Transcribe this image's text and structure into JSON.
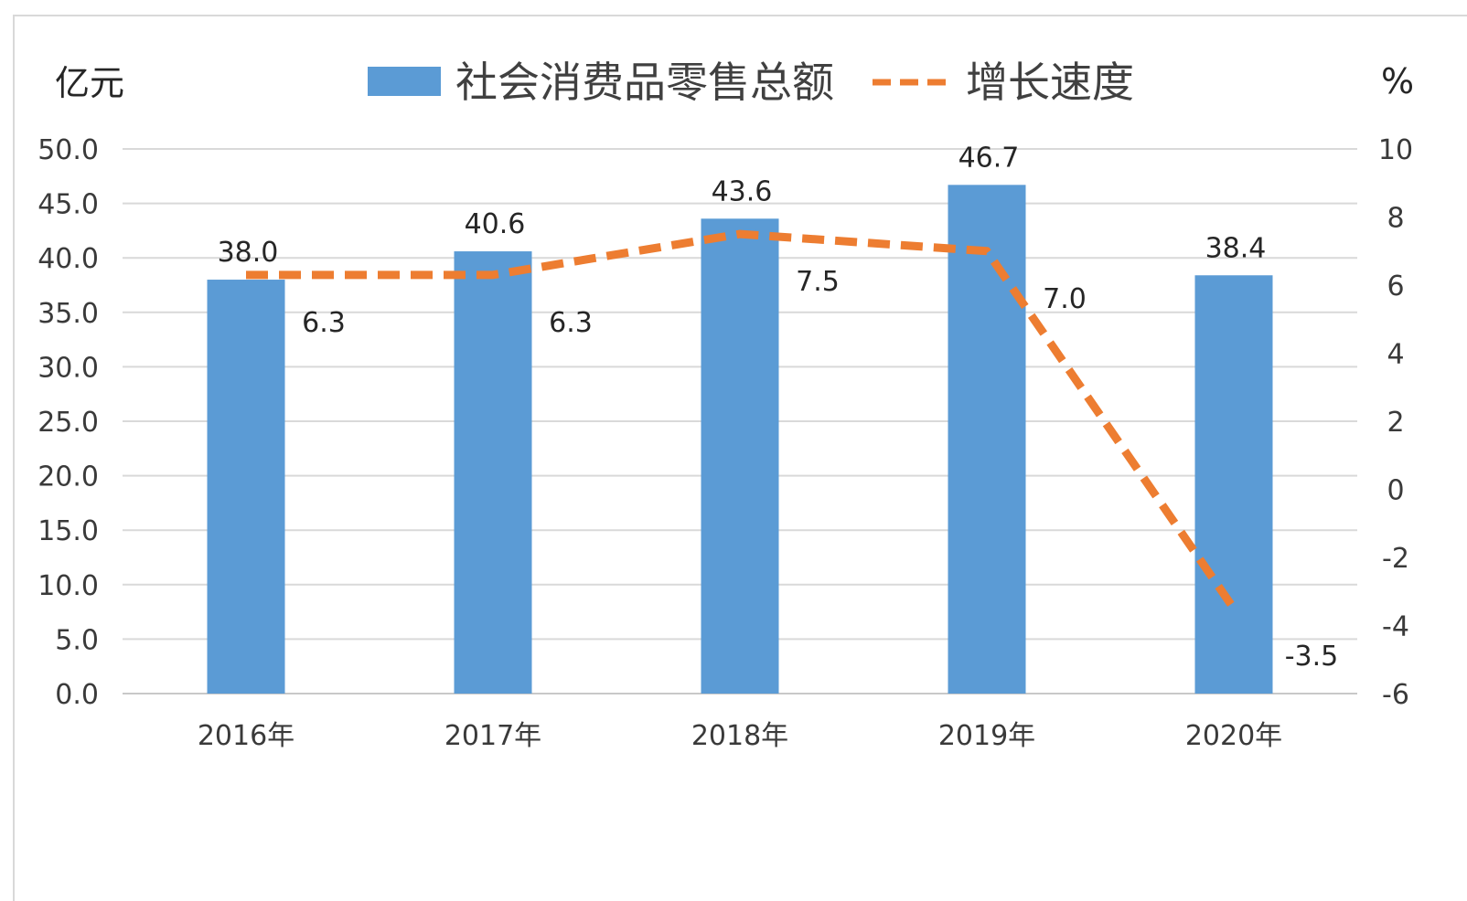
{
  "chart_data": {
    "type": "bar",
    "categories": [
      "2016年",
      "2017年",
      "2018年",
      "2019年",
      "2020年"
    ],
    "series": [
      {
        "name": "社会消费品零售总额",
        "type": "bar",
        "axis": "left",
        "color": "#5b9bd5",
        "values": [
          38.0,
          40.6,
          43.6,
          46.7,
          38.4
        ],
        "labels": [
          "38.0",
          "40.6",
          "43.6",
          "46.7",
          "38.4"
        ]
      },
      {
        "name": "增长速度",
        "type": "line",
        "style": "dashed",
        "axis": "right",
        "color": "#ed7d31",
        "values": [
          6.3,
          6.3,
          7.5,
          7.0,
          -3.5
        ],
        "labels": [
          "6.3",
          "6.3",
          "7.5",
          "7.0",
          "-3.5"
        ]
      }
    ],
    "ylabel_left": "亿元",
    "ylabel_right": "%",
    "ylim_left": [
      0,
      50
    ],
    "ylim_right": [
      -6,
      10
    ],
    "yticks_left": [
      "0.0",
      "5.0",
      "10.0",
      "15.0",
      "20.0",
      "25.0",
      "30.0",
      "35.0",
      "40.0",
      "45.0",
      "50.0"
    ],
    "yticks_right": [
      "-6",
      "-4",
      "-2",
      "0",
      "2",
      "4",
      "6",
      "8",
      "10"
    ],
    "grid": true,
    "legend_position": "top-center"
  }
}
